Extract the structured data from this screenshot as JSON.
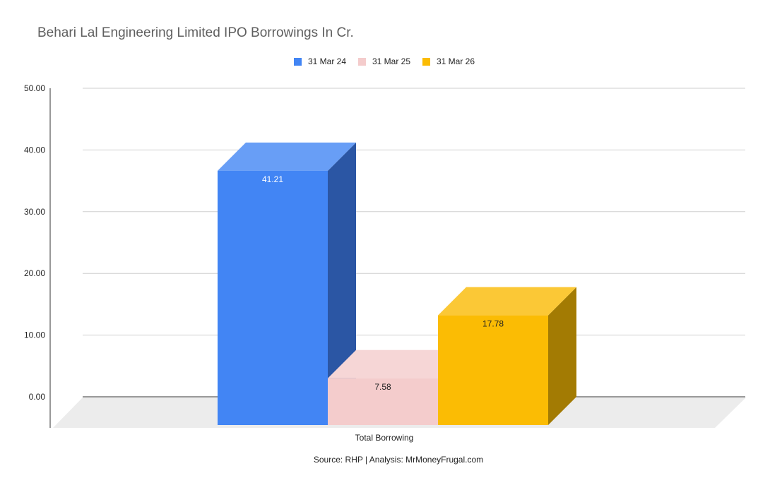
{
  "chart_data": {
    "type": "bar",
    "title": "Behari Lal Engineering Limited IPO Borrowings In Cr.",
    "categories": [
      "Total Borrowing"
    ],
    "series": [
      {
        "name": "31 Mar 24",
        "values": [
          41.21
        ],
        "color": "#4285f4",
        "side_color": "#2b56a4",
        "top_color": "#689ef6"
      },
      {
        "name": "31 Mar 25",
        "values": [
          7.58
        ],
        "color": "#f4cccc",
        "side_color": "#e8bcbc",
        "top_color": "#f6d6d6"
      },
      {
        "name": "31 Mar 26",
        "values": [
          17.78
        ],
        "color": "#fbbc04",
        "side_color": "#a37b03",
        "top_color": "#fbc836"
      }
    ],
    "data_labels": [
      "41.21",
      "7.58",
      "17.78"
    ],
    "yticks": [
      "0.00",
      "10.00",
      "20.00",
      "30.00",
      "40.00",
      "50.00"
    ],
    "ylim": [
      0,
      50
    ],
    "xlabel": "",
    "ylabel": "",
    "legend_position": "top",
    "grid": true,
    "three_d": true
  },
  "footer": {
    "source": "Source: RHP | Analysis: MrMoneyFrugal.com"
  }
}
